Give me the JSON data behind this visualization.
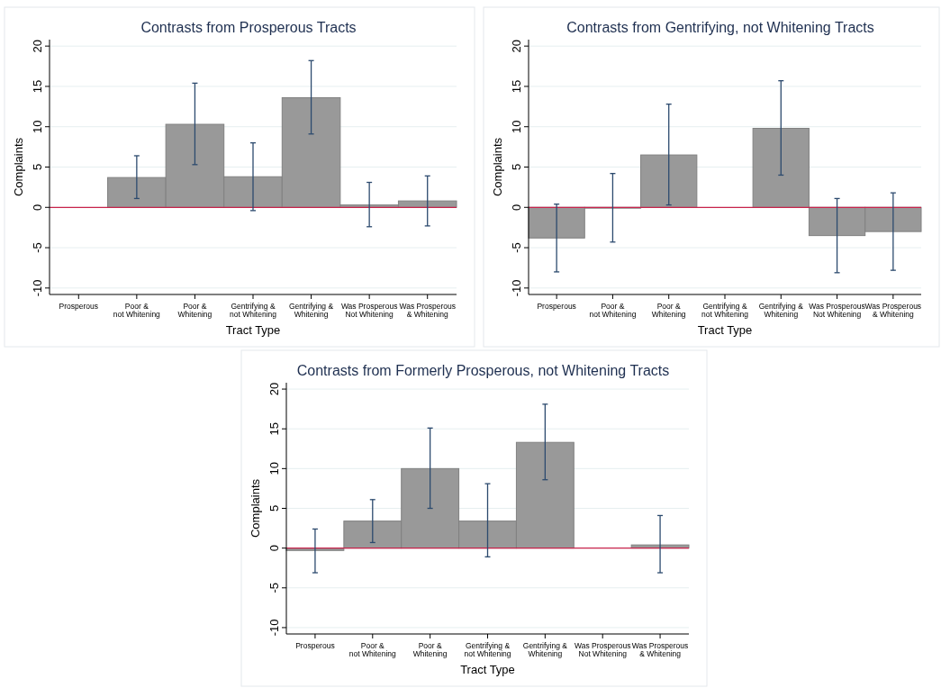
{
  "chart_data": [
    {
      "type": "bar",
      "title": "Contrasts from Prosperous Tracts",
      "xlabel": "Tract Type",
      "ylabel": "Complaints",
      "categories": [
        "Prosperous",
        "Poor &\nnot Whitening",
        "Poor &\nWhitening",
        "Gentrifying &\nnot Whitening",
        "Gentrifying &\nWhitening",
        "Was Prosperous\nNot Whitening",
        "Was Prosperous\n& Whitening"
      ],
      "values": [
        null,
        3.7,
        10.3,
        3.8,
        13.6,
        0.3,
        0.8
      ],
      "errors": [
        null,
        [
          1.1,
          6.4
        ],
        [
          5.3,
          15.4
        ],
        [
          -0.4,
          8.0
        ],
        [
          9.1,
          18.2
        ],
        [
          -2.4,
          3.1
        ],
        [
          -2.3,
          3.9
        ]
      ],
      "color": "#999999",
      "ylim": [
        -10.8,
        20.8
      ],
      "yticks": [
        -10,
        -5,
        0,
        5,
        10,
        15,
        20
      ],
      "grid": "y",
      "ref_lines": [
        {
          "axis": "y",
          "value": 0,
          "color": "#c8244c"
        }
      ]
    },
    {
      "type": "bar",
      "title": "Contrasts from Gentrifying, not Whitening Tracts",
      "xlabel": "Tract Type",
      "ylabel": "Complaints",
      "categories": [
        "Prosperous",
        "Poor &\nnot Whitening",
        "Poor &\nWhitening",
        "Gentrifying &\nnot Whitening",
        "Gentrifying &\nWhitening",
        "Was Prosperous\nNot Whitening",
        "Was Prosperous\n& Whitening"
      ],
      "values": [
        -3.8,
        -0.1,
        6.5,
        null,
        9.8,
        -3.5,
        -3.0
      ],
      "errors": [
        [
          -8.0,
          0.4
        ],
        [
          -4.3,
          4.2
        ],
        [
          0.3,
          12.8
        ],
        null,
        [
          4.0,
          15.7
        ],
        [
          -8.1,
          1.1
        ],
        [
          -7.8,
          1.8
        ]
      ],
      "color": "#999999",
      "ylim": [
        -10.8,
        20.8
      ],
      "yticks": [
        -10,
        -5,
        0,
        5,
        10,
        15,
        20
      ],
      "grid": "y",
      "ref_lines": [
        {
          "axis": "y",
          "value": 0,
          "color": "#c8244c"
        }
      ]
    },
    {
      "type": "bar",
      "title": "Contrasts from Formerly Prosperous, not Whitening Tracts",
      "xlabel": "Tract Type",
      "ylabel": "Complaints",
      "categories": [
        "Prosperous",
        "Poor &\nnot Whitening",
        "Poor &\nWhitening",
        "Gentrifying &\nnot Whitening",
        "Gentrifying &\nWhitening",
        "Was Prosperous\nNot Whitening",
        "Was Prosperous\n& Whitening"
      ],
      "values": [
        -0.3,
        3.4,
        10.0,
        3.4,
        13.3,
        null,
        0.4
      ],
      "errors": [
        [
          -3.1,
          2.4
        ],
        [
          0.7,
          6.1
        ],
        [
          5.0,
          15.1
        ],
        [
          -1.1,
          8.1
        ],
        [
          8.6,
          18.1
        ],
        null,
        [
          -3.1,
          4.1
        ]
      ],
      "color": "#999999",
      "ylim": [
        -10.8,
        20.8
      ],
      "yticks": [
        -10,
        -5,
        0,
        5,
        10,
        15,
        20
      ],
      "grid": "y",
      "ref_lines": [
        {
          "axis": "y",
          "value": 0,
          "color": "#c8244c"
        }
      ]
    }
  ]
}
